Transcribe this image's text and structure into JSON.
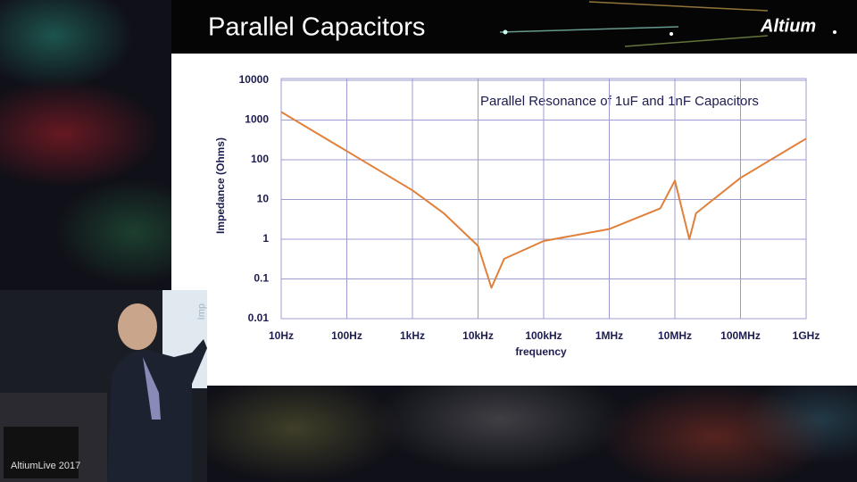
{
  "slide": {
    "title": "Parallel Capacitors",
    "logo": "Altium"
  },
  "video": {
    "caption": "AltiumLive 2017",
    "screen_text": "Imp"
  },
  "chart_data": {
    "type": "line",
    "annotation": "Parallel Resonance of 1uF and 1nF Capacitors",
    "x_label": "frequency",
    "y_label": "Impedance (Ohms)",
    "x": [
      10,
      100,
      1000,
      3000,
      10000,
      16000,
      25000,
      100000,
      1000000,
      6000000,
      10000000,
      16600000,
      21000000,
      100000000,
      1000000000
    ],
    "values": [
      1600,
      165,
      17,
      4.5,
      0.68,
      0.06,
      0.32,
      0.9,
      1.8,
      6,
      30,
      1,
      4.5,
      35,
      340
    ],
    "color": "#e0803a",
    "xlim": [
      10,
      1000000000
    ],
    "ylim": [
      0.01,
      10000
    ],
    "xscale": "log",
    "yscale": "log",
    "xticks": [
      {
        "value": 10,
        "label": "10Hz"
      },
      {
        "value": 100,
        "label": "100Hz"
      },
      {
        "value": 1000,
        "label": "1kHz"
      },
      {
        "value": 10000,
        "label": "10kHz"
      },
      {
        "value": 100000,
        "label": "100kHz"
      },
      {
        "value": 1000000,
        "label": "1MHz"
      },
      {
        "value": 10000000,
        "label": "10MHz"
      },
      {
        "value": 100000000,
        "label": "100MHz"
      },
      {
        "value": 1000000000,
        "label": "1GHz"
      }
    ],
    "yticks": [
      10000,
      1000,
      100,
      10,
      1,
      0.1,
      0.01
    ],
    "grid": true,
    "grid_color": "#9c9cd2"
  }
}
